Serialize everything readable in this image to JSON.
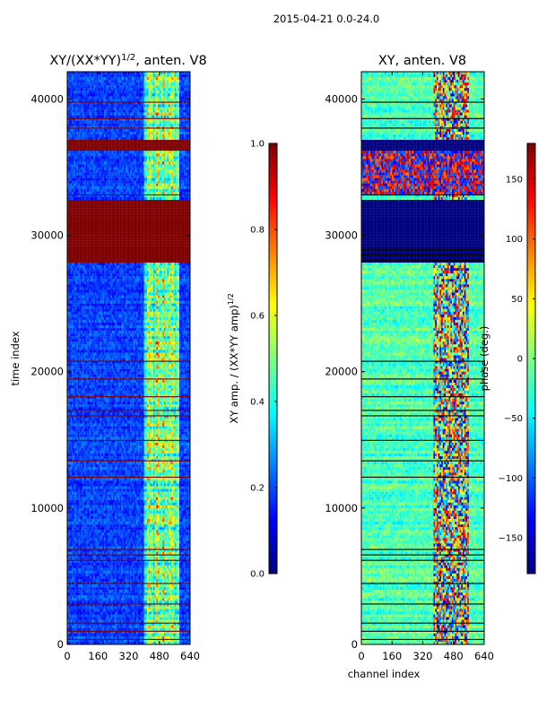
{
  "figure": {
    "suptitle": "2015-04-21 0.0-24.0"
  },
  "colors": {
    "colormap": "jet",
    "jet_stops": [
      "#00007f",
      "#0000ff",
      "#007fff",
      "#00ffff",
      "#7fff7f",
      "#ffff00",
      "#ff7f00",
      "#ff0000",
      "#7f0000"
    ],
    "frame": "#000000",
    "flag_line": "#7f0000"
  },
  "chart_data": [
    {
      "type": "heatmap",
      "title": "XY/(XX*YY)",
      "title_sup": "1/2",
      "title_suffix": ", anten. V8",
      "xlabel": "",
      "ylabel": "time index",
      "xlim": [
        0,
        640
      ],
      "ylim": [
        0,
        42000
      ],
      "xticks": [
        0,
        160,
        320,
        480,
        640
      ],
      "xtick_labels": [
        "0",
        "160",
        "320",
        "480",
        "640"
      ],
      "yticks": [
        0,
        10000,
        20000,
        30000,
        40000
      ],
      "ytick_labels": [
        "0",
        "10000",
        "20000",
        "30000",
        "40000"
      ],
      "colorbar": {
        "label": "XY amp. / (XX*YY amp)",
        "label_sup": "1/2",
        "range": [
          0.0,
          1.0
        ],
        "ticks": [
          0.0,
          0.2,
          0.4,
          0.6,
          0.8,
          1.0
        ],
        "tick_labels": [
          "0.0",
          "0.2",
          "0.4",
          "0.6",
          "0.8",
          "1.0"
        ]
      },
      "saturated_time_bands": [
        [
          28000,
          32500
        ],
        [
          36300,
          37000
        ]
      ],
      "flagged_rows": [
        400,
        1000,
        1600,
        3000,
        4500,
        6200,
        6600,
        7000,
        12300,
        13500,
        15000,
        16800,
        17200,
        18200,
        19500,
        20800,
        29000,
        33000,
        37900,
        38600,
        39800
      ],
      "bright_channel_region": [
        400,
        580
      ],
      "note": "Amplitude mostly 0.1-0.3 (blue); channels ~400-580 show 0.4-0.9 bands; rows ~28000-32500 and ~36300-37000 fully saturated at 1.0"
    },
    {
      "type": "heatmap",
      "title": "XY, anten. V8",
      "xlabel": "channel index",
      "ylabel": "",
      "xlim": [
        0,
        640
      ],
      "ylim": [
        0,
        42000
      ],
      "xticks": [
        0,
        160,
        320,
        480,
        640
      ],
      "xtick_labels": [
        "0",
        "160",
        "320",
        "480",
        "640"
      ],
      "yticks": [
        0,
        10000,
        20000,
        30000,
        40000
      ],
      "ytick_labels": [
        "0",
        "10000",
        "20000",
        "30000",
        "40000"
      ],
      "colorbar": {
        "label": "phase (deg.)",
        "range": [
          -180,
          180
        ],
        "ticks": [
          -150,
          -100,
          -50,
          0,
          50,
          100,
          150
        ],
        "tick_labels": [
          "−150",
          "−100",
          "−50",
          "0",
          "50",
          "100",
          "150"
        ]
      },
      "saturated_time_bands": [
        [
          28000,
          32500
        ],
        [
          36300,
          37000
        ]
      ],
      "saturated_value": -180,
      "flagged_rows": [
        400,
        1000,
        1600,
        3000,
        4500,
        6200,
        6600,
        7000,
        12300,
        13500,
        15000,
        16800,
        17200,
        18200,
        19500,
        20800,
        28200,
        28600,
        29000,
        33000,
        37900,
        38600,
        39800
      ],
      "noisy_time_band": [
        33000,
        36300
      ],
      "noisy_channel_region": [
        380,
        560
      ],
      "note": "Phase mostly near 0 deg (green/cyan); channels ~380-560 noisy (blue/red); rows ~33000-36300 wrapped red/blue phase"
    }
  ]
}
